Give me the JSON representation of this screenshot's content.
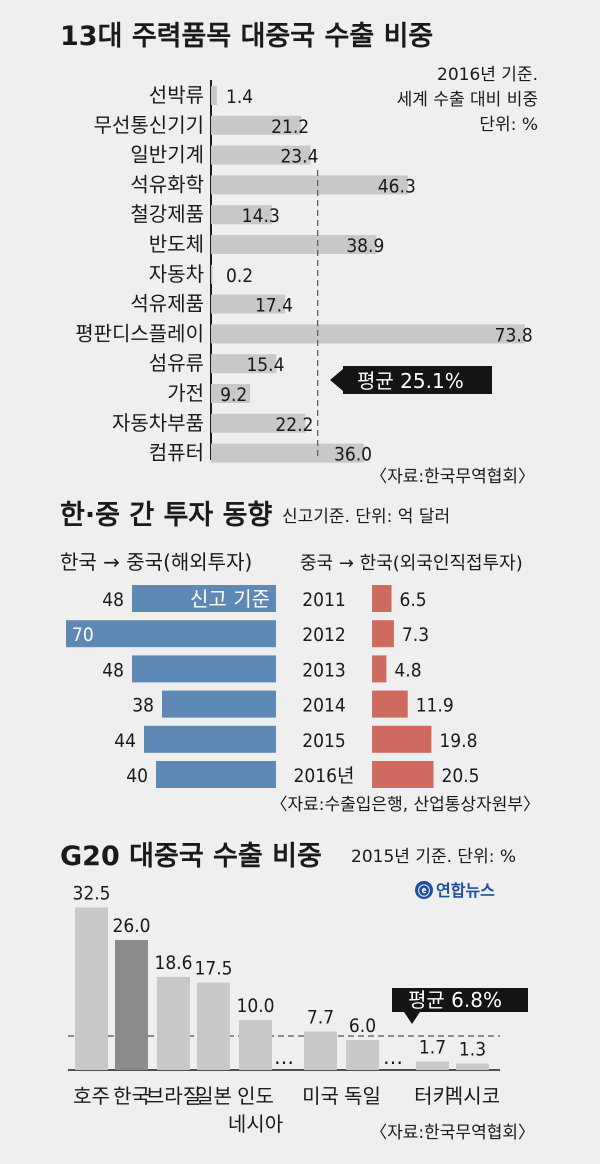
{
  "colors": {
    "bar_gray": "#c7c8ca",
    "bar_dark": "#8a8b8d",
    "bar_blue": "#5d89b4",
    "bar_red": "#cf6a5f",
    "callout": "#141414",
    "background": "#efefef"
  },
  "logo": {
    "text": "연합뉴스"
  },
  "chart_data": [
    {
      "type": "bar",
      "orientation": "horizontal",
      "title": "13대 주력품목 대중국 수출 비중",
      "note_lines": [
        "2016년 기준.",
        "세계 수출 대비 비중",
        "단위: %"
      ],
      "categories": [
        "선박류",
        "무선통신기기",
        "일반기계",
        "석유화학",
        "철강제품",
        "반도체",
        "자동차",
        "석유제품",
        "평판디스플레이",
        "섬유류",
        "가전",
        "자동차부품",
        "컴퓨터"
      ],
      "values": [
        1.4,
        21.2,
        23.4,
        46.3,
        14.3,
        38.9,
        0.2,
        17.4,
        73.8,
        15.4,
        9.2,
        22.2,
        36.0
      ],
      "value_labels": [
        "1.4",
        "21.2",
        "23.4",
        "46.3",
        "14.3",
        "38.9",
        "0.2",
        "17.4",
        "73.8",
        "15.4",
        "9.2",
        "22.2",
        "36.0"
      ],
      "average": {
        "value": 25.1,
        "label": "평균 25.1%"
      },
      "source": "〈자료:한국무역협회〉"
    },
    {
      "type": "bar",
      "orientation": "horizontal-diverging",
      "title": "한·중 간 투자 동향",
      "subtitle": "신고기준. 단위: 억 달러",
      "left_header": "한국 → 중국(해외투자)",
      "right_header": "중국 → 한국(외국인직접투자)",
      "categories": [
        "2011",
        "2012",
        "2013",
        "2014",
        "2015",
        "2016년"
      ],
      "series": [
        {
          "name": "한국 → 중국(해외투자)",
          "values": [
            48,
            70,
            48,
            38,
            44,
            40
          ],
          "labels": [
            "48",
            "70",
            "48",
            "38",
            "44",
            "40"
          ]
        },
        {
          "name": "중국 → 한국(외국인직접투자)",
          "values": [
            6.5,
            7.3,
            4.8,
            11.9,
            19.8,
            20.5
          ],
          "labels": [
            "6.5",
            "7.3",
            "4.8",
            "11.9",
            "19.8",
            "20.5"
          ]
        }
      ],
      "bar_note": "신고 기준",
      "source": "〈자료:수출입은행, 산업통상자원부〉"
    },
    {
      "type": "bar",
      "orientation": "vertical",
      "title": "G20 대중국 수출 비중",
      "subtitle": "2015년 기준. 단위: %",
      "categories": [
        "호주",
        "한국",
        "브라질",
        "일본",
        "인도\n네시아",
        "미국",
        "독일",
        "터키",
        "멕시코"
      ],
      "values": [
        32.5,
        26.0,
        18.6,
        17.5,
        10.0,
        7.7,
        6.0,
        1.7,
        1.3
      ],
      "value_labels": [
        "32.5",
        "26.0",
        "18.6",
        "17.5",
        "10.0",
        "7.7",
        "6.0",
        "1.7",
        "1.3"
      ],
      "highlight": "한국",
      "ellipsis": "…",
      "average": {
        "value": 6.8,
        "label": "평균 6.8%"
      },
      "source": "〈자료:한국무역협회〉"
    }
  ]
}
